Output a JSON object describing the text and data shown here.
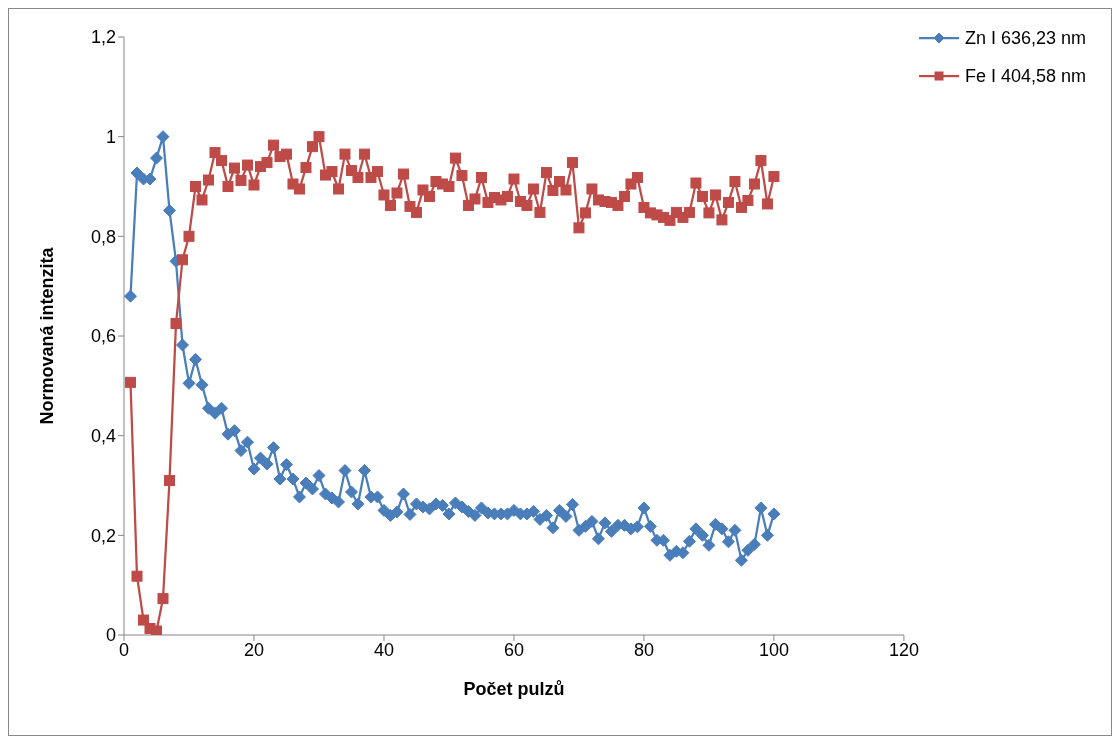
{
  "chart_data": {
    "type": "line",
    "xlabel": "Počet pulzů",
    "ylabel": "Normovaná intenzita",
    "x": [
      1,
      2,
      3,
      4,
      5,
      6,
      7,
      8,
      9,
      10,
      11,
      12,
      13,
      14,
      15,
      16,
      17,
      18,
      19,
      20,
      21,
      22,
      23,
      24,
      25,
      26,
      27,
      28,
      29,
      30,
      31,
      32,
      33,
      34,
      35,
      36,
      37,
      38,
      39,
      40,
      41,
      42,
      43,
      44,
      45,
      46,
      47,
      48,
      49,
      50,
      51,
      52,
      53,
      54,
      55,
      56,
      57,
      58,
      59,
      60,
      61,
      62,
      63,
      64,
      65,
      66,
      67,
      68,
      69,
      70,
      71,
      72,
      73,
      74,
      75,
      76,
      77,
      78,
      79,
      80,
      81,
      82,
      83,
      84,
      85,
      86,
      87,
      88,
      89,
      90,
      91,
      92,
      93,
      94,
      95,
      96,
      97,
      98,
      99,
      100
    ],
    "series": [
      {
        "name": "Zn I 636,23 nm",
        "color": "#4a7ebb",
        "marker": "diamond",
        "values": [
          0.68,
          0.927,
          0.915,
          0.915,
          0.957,
          1.0,
          0.852,
          0.75,
          0.582,
          0.505,
          0.553,
          0.502,
          0.455,
          0.445,
          0.455,
          0.403,
          0.41,
          0.37,
          0.387,
          0.333,
          0.355,
          0.343,
          0.376,
          0.313,
          0.342,
          0.313,
          0.277,
          0.305,
          0.293,
          0.32,
          0.283,
          0.275,
          0.267,
          0.33,
          0.287,
          0.263,
          0.33,
          0.277,
          0.277,
          0.25,
          0.24,
          0.247,
          0.283,
          0.242,
          0.263,
          0.257,
          0.253,
          0.263,
          0.26,
          0.243,
          0.265,
          0.257,
          0.248,
          0.24,
          0.255,
          0.245,
          0.243,
          0.243,
          0.243,
          0.25,
          0.243,
          0.243,
          0.248,
          0.232,
          0.24,
          0.215,
          0.25,
          0.238,
          0.262,
          0.21,
          0.218,
          0.228,
          0.193,
          0.225,
          0.208,
          0.22,
          0.22,
          0.213,
          0.217,
          0.255,
          0.218,
          0.19,
          0.19,
          0.16,
          0.168,
          0.165,
          0.188,
          0.213,
          0.2,
          0.18,
          0.222,
          0.213,
          0.187,
          0.21,
          0.15,
          0.17,
          0.182,
          0.255,
          0.2,
          0.243
        ]
      },
      {
        "name": "Fe I 404,58 nm",
        "color": "#be4b48",
        "marker": "square",
        "values": [
          0.507,
          0.118,
          0.03,
          0.013,
          0.008,
          0.073,
          0.31,
          0.625,
          0.753,
          0.8,
          0.9,
          0.873,
          0.913,
          0.968,
          0.952,
          0.9,
          0.937,
          0.912,
          0.943,
          0.903,
          0.94,
          0.948,
          0.983,
          0.96,
          0.965,
          0.905,
          0.895,
          0.938,
          0.98,
          1.0,
          0.923,
          0.93,
          0.895,
          0.965,
          0.932,
          0.918,
          0.965,
          0.918,
          0.93,
          0.883,
          0.862,
          0.887,
          0.925,
          0.86,
          0.848,
          0.893,
          0.88,
          0.91,
          0.905,
          0.9,
          0.957,
          0.922,
          0.862,
          0.875,
          0.918,
          0.868,
          0.878,
          0.873,
          0.88,
          0.915,
          0.87,
          0.862,
          0.895,
          0.848,
          0.928,
          0.892,
          0.91,
          0.893,
          0.948,
          0.817,
          0.847,
          0.895,
          0.873,
          0.87,
          0.868,
          0.862,
          0.88,
          0.905,
          0.918,
          0.858,
          0.847,
          0.843,
          0.838,
          0.832,
          0.848,
          0.838,
          0.848,
          0.907,
          0.88,
          0.847,
          0.883,
          0.833,
          0.868,
          0.91,
          0.858,
          0.872,
          0.905,
          0.952,
          0.865,
          0.92
        ]
      }
    ],
    "xlim": [
      0,
      120
    ],
    "xticks": [
      0,
      20,
      40,
      60,
      80,
      100,
      120
    ],
    "ylim": [
      0,
      1.2
    ],
    "yticks": [
      0,
      {
        "value": 0.2,
        "label": "0,2"
      },
      {
        "value": 0.4,
        "label": "0,4"
      },
      {
        "value": 0.6,
        "label": "0,6"
      },
      {
        "value": 0.8,
        "label": "0,8"
      },
      1,
      {
        "value": 1.2,
        "label": "1,2"
      }
    ],
    "grid": false,
    "legend": "top right"
  }
}
